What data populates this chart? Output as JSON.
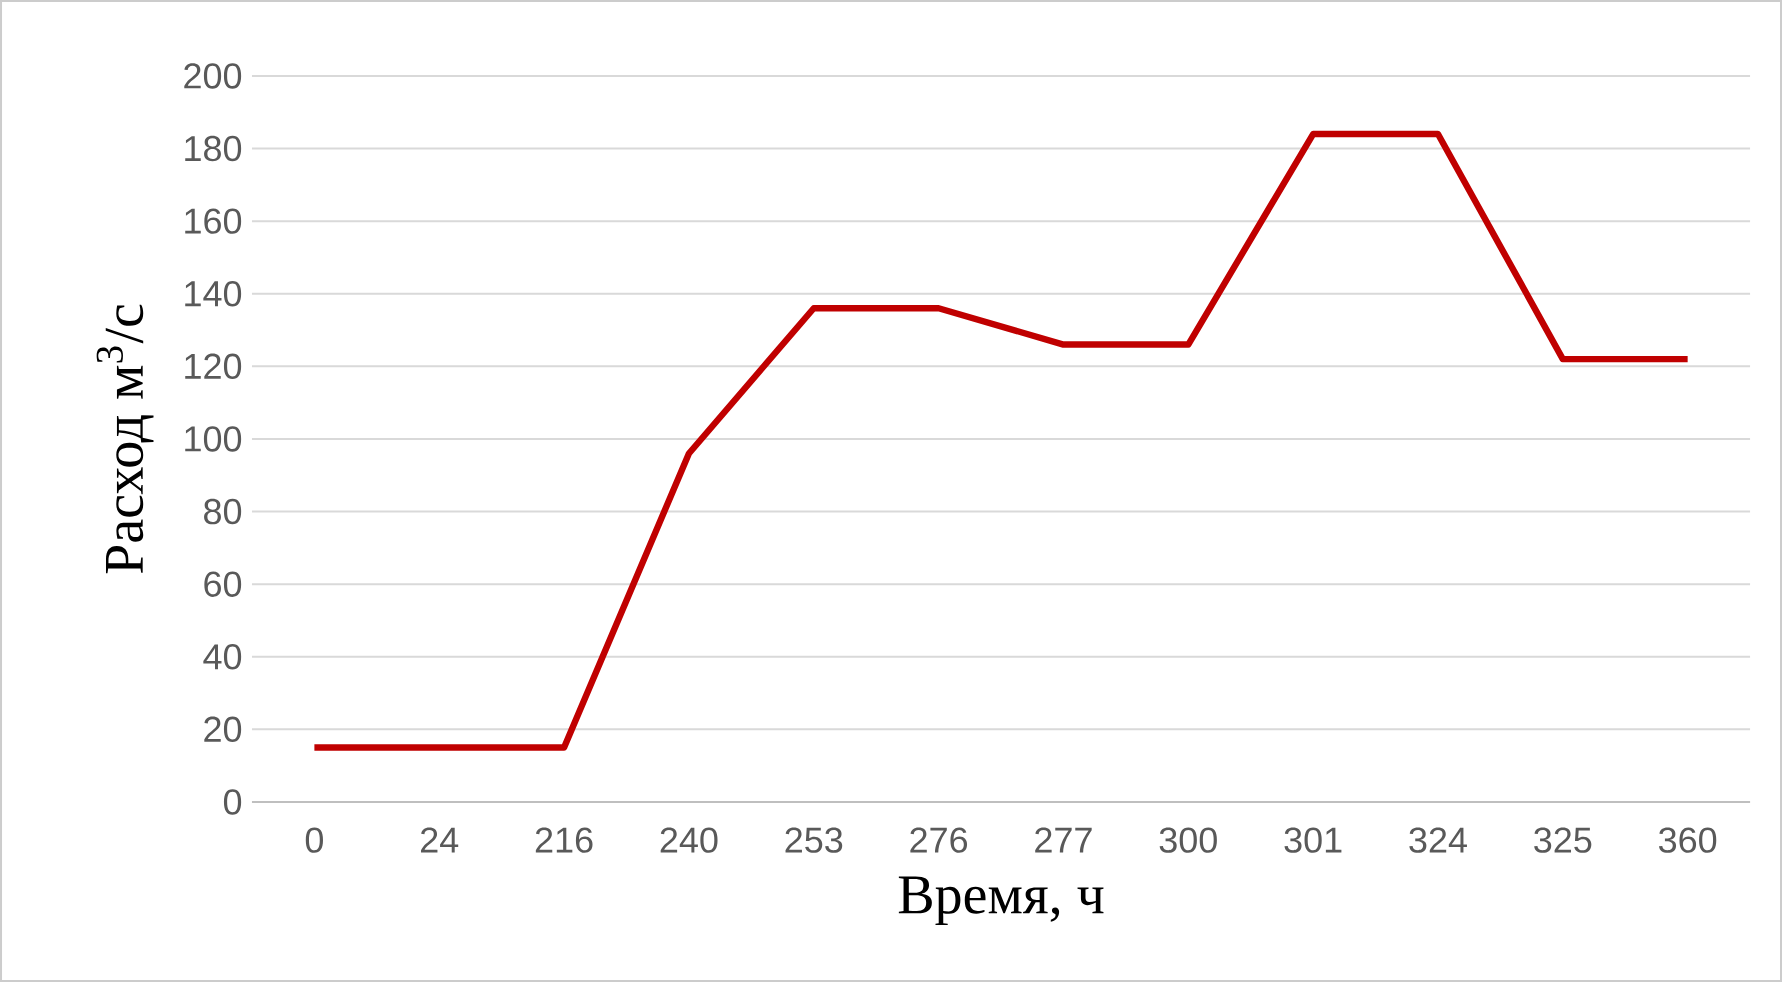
{
  "chart_data": {
    "type": "line",
    "xlabel": "Время, ч",
    "ylabel": "Расход м$^{3}$/с",
    "categories": [
      "0",
      "24",
      "216",
      "240",
      "253",
      "276",
      "277",
      "300",
      "301",
      "324",
      "325",
      "360"
    ],
    "series": [
      {
        "color": "#c00000",
        "values": [
          15,
          15,
          15,
          96,
          136,
          136,
          126,
          126,
          184,
          184,
          122,
          122
        ]
      }
    ],
    "ylim": [
      0,
      200
    ],
    "yticks": [
      0,
      20,
      40,
      60,
      80,
      100,
      120,
      140,
      160,
      180,
      200
    ],
    "grid": "y"
  }
}
